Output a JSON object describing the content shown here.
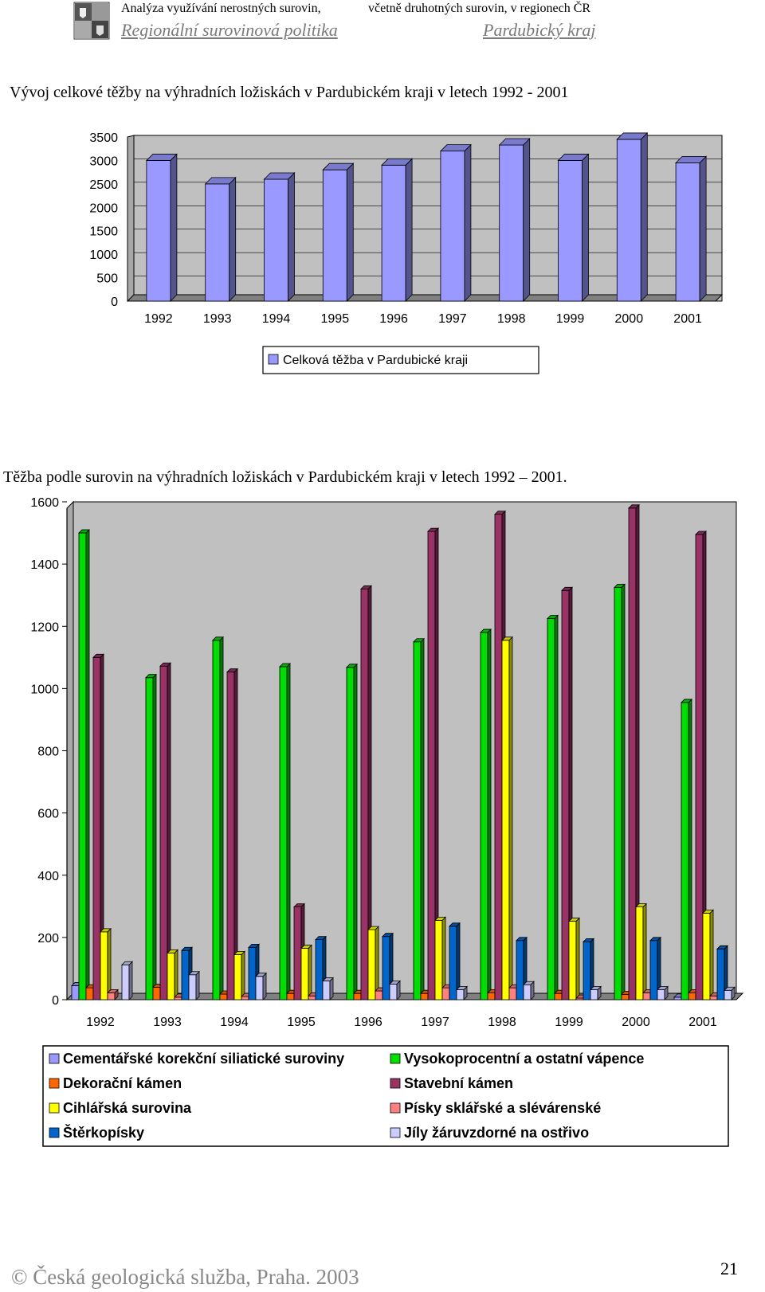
{
  "header": {
    "line1_left": "Analýza využívání nerostných surovin,",
    "line1_right": "včetně druhotných surovin, v regionech ČR",
    "line2_left": "Regionální surovinová politika",
    "line2_right": "Pardubický kraj",
    "crest_icon": "coat-of-arms-icon"
  },
  "colors": {
    "wall": "#c0c0c0",
    "floor": "#808080",
    "total_bar": "#9999ff",
    "total_bar_dark": "#4b4b9e"
  },
  "chart_data": [
    {
      "type": "bar",
      "title": "Vývoj celkové těžby na výhradních ložiskách v Pardubickém kraji v letech 1992 - 2001",
      "categories": [
        "1992",
        "1993",
        "1994",
        "1995",
        "1996",
        "1997",
        "1998",
        "1999",
        "2000",
        "2001"
      ],
      "series": [
        {
          "name": "Celková těžba v Pardubické kraji",
          "color": "#9999ff",
          "values": [
            3000,
            2500,
            2600,
            2800,
            2900,
            3200,
            3330,
            3000,
            3450,
            2950
          ]
        }
      ],
      "yticks": [
        "0",
        "500",
        "1000",
        "1500",
        "2000",
        "2500",
        "3000",
        "3500"
      ],
      "ylim": [
        0,
        3500
      ],
      "grid": true,
      "legend": "bottom",
      "three_d": true
    },
    {
      "type": "bar",
      "title": "Těžba podle surovin na výhradních ložiskách v Pardubickém kraji  v letech 1992 – 2001.",
      "categories": [
        "1992",
        "1993",
        "1994",
        "1995",
        "1996",
        "1997",
        "1998",
        "1999",
        "2000",
        "2001"
      ],
      "series": [
        {
          "name": "Cementářské korekční siliatické suroviny",
          "color": "#9999ff",
          "values": [
            45,
            0,
            0,
            0,
            0,
            0,
            0,
            0,
            0,
            8
          ]
        },
        {
          "name": "Vysokoprocentní a ostatní vápence",
          "color": "#00dd00",
          "values": [
            1500,
            1035,
            1155,
            1070,
            1068,
            1150,
            1180,
            1225,
            1325,
            955
          ]
        },
        {
          "name": "Dekorační kámen",
          "color": "#ff6600",
          "values": [
            38,
            40,
            18,
            20,
            20,
            20,
            22,
            20,
            17,
            22
          ]
        },
        {
          "name": "Stavební kámen",
          "color": "#993366",
          "values": [
            1100,
            1072,
            1053,
            298,
            1320,
            1505,
            1560,
            1315,
            1580,
            1495
          ]
        },
        {
          "name": "Cihlářská surovina",
          "color": "#ffff00",
          "values": [
            218,
            150,
            145,
            165,
            225,
            255,
            1155,
            252,
            298,
            278
          ]
        },
        {
          "name": "Písky sklářské a slévárenské",
          "color": "#ff8080",
          "values": [
            22,
            8,
            10,
            12,
            28,
            38,
            38,
            5,
            22,
            12
          ]
        },
        {
          "name": "Štěrkopísky",
          "color": "#0066cc",
          "values": [
            0,
            158,
            168,
            193,
            203,
            236,
            190,
            186,
            190,
            163
          ]
        },
        {
          "name": "Jíly žáruvzdorné na ostřivo",
          "color": "#ccccff",
          "values": [
            112,
            80,
            75,
            60,
            50,
            32,
            48,
            32,
            32,
            30
          ]
        }
      ],
      "yticks": [
        "0",
        "200",
        "400",
        "600",
        "800",
        "1000",
        "1200",
        "1400",
        "1600"
      ],
      "ylim": [
        0,
        1600
      ],
      "grid": false,
      "legend": "bottom",
      "three_d": true
    }
  ],
  "footer": {
    "left": "© Česká geologická služba, Praha. 2003",
    "page_number": "21"
  }
}
